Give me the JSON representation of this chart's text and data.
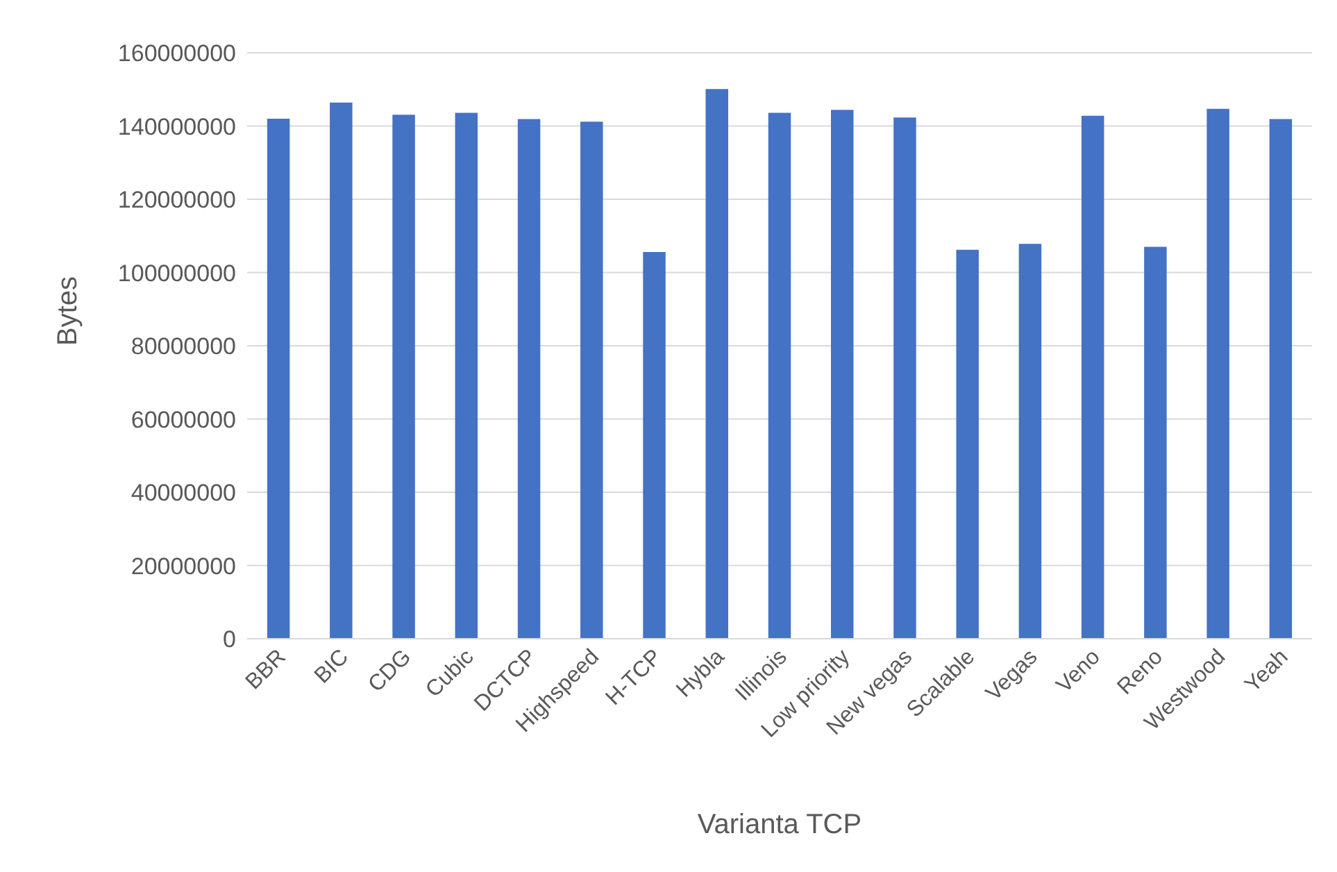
{
  "chart_data": {
    "type": "bar",
    "xlabel": "Varianta TCP",
    "ylabel": "Bytes",
    "categories": [
      "BBR",
      "BIC",
      "CDG",
      "Cubic",
      "DCTCP",
      "Highspeed",
      "H-TCP",
      "Hybla",
      "Illinois",
      "Low priority",
      "New vegas",
      "Scalable",
      "Vegas",
      "Veno",
      "Reno",
      "Westwood",
      "Yeah"
    ],
    "values": [
      142000000,
      146400000,
      143100000,
      143600000,
      141900000,
      141200000,
      105600000,
      150100000,
      143600000,
      144400000,
      142300000,
      106200000,
      107800000,
      142800000,
      107000000,
      144700000,
      141900000
    ],
    "color": "#4472c4",
    "ylim": [
      0,
      160000000
    ],
    "yticks": [
      0,
      20000000,
      40000000,
      60000000,
      80000000,
      100000000,
      120000000,
      140000000,
      160000000
    ],
    "grid": "y",
    "legend": false
  }
}
